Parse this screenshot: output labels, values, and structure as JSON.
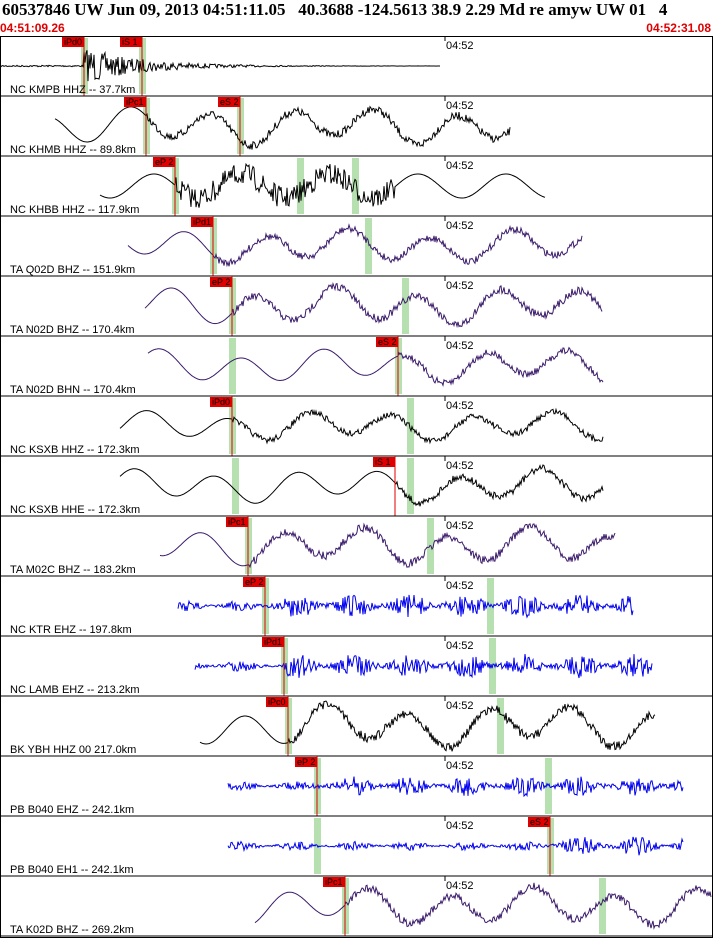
{
  "header": {
    "title": "60537846 UW Jun 09, 2013 04:51:11.05   40.3688 -124.5613 38.9 2.29 Md re amyw UW 01   4",
    "start_time": "04:51:09.26",
    "end_time": "04:52:31.08"
  },
  "colors": {
    "pick_box": "#e00000",
    "green_band": "#b7e0b0",
    "trace_black": "#000000",
    "trace_purple": "#3a1a6a",
    "trace_blue": "#0000ee",
    "divider": "#000000"
  },
  "time_tick_label": "04:52",
  "traces": [
    {
      "label": "NC KMPB HHZ -- 37.7km",
      "color": "black",
      "picks": [
        {
          "text": "iPd0"
        },
        {
          "text": "iS 1"
        }
      ]
    },
    {
      "label": "NC KHMB HHZ -- 89.8km",
      "color": "black",
      "picks": [
        {
          "text": "iPc1"
        },
        {
          "text": "eS 2"
        }
      ]
    },
    {
      "label": "NC KHBB HHZ -- 117.9km",
      "color": "black",
      "picks": [
        {
          "text": "eP 2"
        }
      ]
    },
    {
      "label": "TA Q02D BHZ -- 151.9km",
      "color": "purple",
      "picks": [
        {
          "text": "iPd1"
        }
      ]
    },
    {
      "label": "TA N02D BHZ -- 170.4km",
      "color": "purple",
      "picks": [
        {
          "text": "eP 2"
        }
      ]
    },
    {
      "label": "TA N02D BHN -- 170.4km",
      "color": "purple",
      "picks": [
        {
          "text": "eS 2"
        }
      ]
    },
    {
      "label": "NC KSXB HHZ -- 172.3km",
      "color": "black",
      "picks": [
        {
          "text": "iPd0"
        }
      ]
    },
    {
      "label": "NC KSXB HHE -- 172.3km",
      "color": "black",
      "picks": [
        {
          "text": "iS 1"
        }
      ]
    },
    {
      "label": "TA M02C BHZ -- 183.2km",
      "color": "purple",
      "picks": [
        {
          "text": "iPc1"
        }
      ]
    },
    {
      "label": "NC KTR EHZ -- 197.8km",
      "color": "blue",
      "picks": [
        {
          "text": "eP 2"
        }
      ]
    },
    {
      "label": "NC LAMB EHZ -- 213.2km",
      "color": "blue",
      "picks": [
        {
          "text": "iPd1"
        }
      ]
    },
    {
      "label": "BK YBH HHZ 00 217.0km",
      "color": "black",
      "picks": [
        {
          "text": "iPc0"
        }
      ]
    },
    {
      "label": "PB B040 EHZ -- 242.1km",
      "color": "blue",
      "picks": [
        {
          "text": "eP 2"
        }
      ]
    },
    {
      "label": "PB B040 EH1 -- 242.1km",
      "color": "blue",
      "picks": [
        {
          "text": "eS 2"
        }
      ]
    },
    {
      "label": "TA K02D BHZ -- 269.2km",
      "color": "purple",
      "picks": [
        {
          "text": "iPc1"
        }
      ]
    }
  ]
}
